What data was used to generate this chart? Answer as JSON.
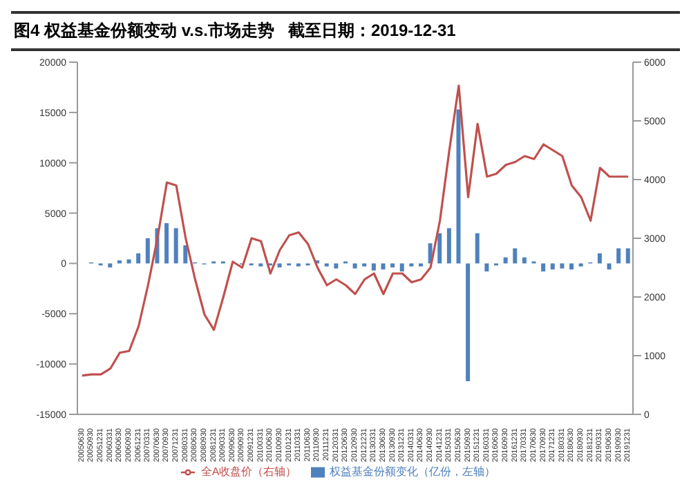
{
  "chart_data": {
    "type": "bar",
    "title": "图4 权益基金份额变动 v.s.市场走势   截至日期：2019-12-31",
    "categories": [
      "20050630",
      "20050930",
      "20051231",
      "20060331",
      "20060630",
      "20060930",
      "20061231",
      "20070331",
      "20070630",
      "20070930",
      "20071231",
      "20080331",
      "20080630",
      "20080930",
      "20081231",
      "20090331",
      "20090630",
      "20090930",
      "20091231",
      "20100331",
      "20100630",
      "20100930",
      "20101231",
      "20110331",
      "20110630",
      "20110930",
      "20111231",
      "20120331",
      "20120630",
      "20120930",
      "20121231",
      "20130331",
      "20130630",
      "20130930",
      "20131231",
      "20140331",
      "20140630",
      "20140930",
      "20141231",
      "20150331",
      "20150630",
      "20150930",
      "20151231",
      "20160331",
      "20160630",
      "20160930",
      "20161231",
      "20170331",
      "20170630",
      "20170930",
      "20171231",
      "20180331",
      "20180630",
      "20180930",
      "20181231",
      "20190331",
      "20190630",
      "20190930",
      "20191231"
    ],
    "series": [
      {
        "name": "权益基金份额变化（亿份，左轴）",
        "color": "#4f81bd",
        "values": [
          0,
          100,
          -200,
          -400,
          300,
          400,
          1000,
          2500,
          3500,
          4000,
          3500,
          1800,
          100,
          -100,
          200,
          200,
          null,
          -100,
          -200,
          -300,
          -200,
          -400,
          -200,
          -300,
          -200,
          300,
          -300,
          -500,
          200,
          -500,
          -300,
          -700,
          -600,
          -400,
          -800,
          -300,
          -300,
          2000,
          3000,
          3500,
          15300,
          -11700,
          3000,
          -800,
          -200,
          600,
          1500,
          600,
          200,
          -800,
          -600,
          -500,
          -600,
          -300,
          100,
          1000,
          -600,
          1500,
          1500
        ]
      },
      {
        "name": "全A收盘价（右轴）",
        "type": "line",
        "axis": "y2",
        "color": "#c0504d",
        "values": [
          660,
          680,
          680,
          780,
          1050,
          1080,
          1500,
          2200,
          3000,
          3950,
          3900,
          3000,
          2300,
          1700,
          1440,
          2000,
          2600,
          2500,
          3000,
          2950,
          2400,
          2800,
          3050,
          3100,
          2900,
          2500,
          2200,
          2300,
          2200,
          2050,
          2300,
          2400,
          2050,
          2400,
          2400,
          2250,
          2300,
          2500,
          3300,
          4500,
          5600,
          3700,
          4950,
          4050,
          4100,
          4250,
          4300,
          4400,
          4350,
          4600,
          4500,
          4400,
          3900,
          3700,
          3300,
          4200,
          4050,
          4050,
          4050
        ]
      }
    ],
    "ylim": [
      -15000,
      20000
    ],
    "yticks": [
      -15000,
      -10000,
      -5000,
      0,
      5000,
      10000,
      15000,
      20000
    ],
    "y2lim": [
      0,
      6000
    ],
    "y2ticks": [
      0,
      1000,
      2000,
      3000,
      4000,
      5000,
      6000
    ],
    "legend": "bottom",
    "marker": "none"
  }
}
